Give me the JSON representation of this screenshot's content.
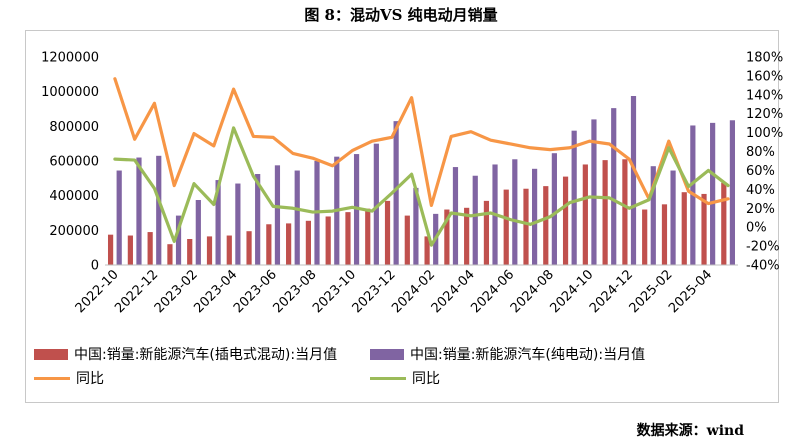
{
  "title": "图 8：混动VS 纯电动月销量",
  "source": "数据来源：wind",
  "legend": {
    "phev": "中国:销量:新能源汽车(插电式混动):当月值",
    "bev": "中国:销量:新能源汽车(纯电动):当月值",
    "phev_yoy": "同比",
    "bev_yoy": "同比"
  },
  "colors": {
    "phev": "#c0504d",
    "bev": "#8064a2",
    "phev_yoy": "#f79646",
    "bev_yoy": "#9bbb59"
  },
  "chart_data": {
    "type": "bar",
    "categories": [
      "2022-10",
      "2022-11",
      "2022-12",
      "2023-01",
      "2023-02",
      "2023-03",
      "2023-04",
      "2023-05",
      "2023-06",
      "2023-07",
      "2023-08",
      "2023-09",
      "2023-10",
      "2023-11",
      "2023-12",
      "2024-01",
      "2024-02",
      "2024-03",
      "2024-04",
      "2024-05",
      "2024-06",
      "2024-07",
      "2024-08",
      "2024-09",
      "2024-10",
      "2024-11",
      "2024-12",
      "2025-01",
      "2025-02",
      "2025-03",
      "2025-04",
      "2025-05"
    ],
    "x_tick_labels": [
      "2022-10",
      "2022-12",
      "2023-02",
      "2023-04",
      "2023-06",
      "2023-08",
      "2023-10",
      "2023-12",
      "2024-02",
      "2024-04",
      "2024-06",
      "2024-08",
      "2024-10",
      "2024-12",
      "2025-02",
      "2025-04"
    ],
    "y_left": {
      "min": 0,
      "max": 1200000,
      "step": 200000,
      "ticks": [
        "0",
        "200000",
        "400000",
        "600000",
        "800000",
        "1000000",
        "1200000"
      ]
    },
    "y_right": {
      "min": -40,
      "max": 180,
      "step": 20,
      "ticks": [
        "-40%",
        "-20%",
        "0%",
        "20%",
        "40%",
        "60%",
        "80%",
        "100%",
        "120%",
        "140%",
        "160%",
        "180%"
      ]
    },
    "grid": false,
    "legend_position": "bottom",
    "series": [
      {
        "name": "中国:销量:新能源汽车(插电式混动):当月值",
        "type": "bar",
        "axis": "left",
        "values": [
          175000,
          170000,
          190000,
          120000,
          150000,
          165000,
          170000,
          195000,
          235000,
          240000,
          255000,
          280000,
          305000,
          325000,
          370000,
          285000,
          165000,
          320000,
          330000,
          370000,
          435000,
          440000,
          455000,
          510000,
          580000,
          605000,
          610000,
          320000,
          350000,
          420000,
          410000,
          475000
        ]
      },
      {
        "name": "中国:销量:新能源汽车(纯电动):当月值",
        "type": "bar",
        "axis": "left",
        "values": [
          545000,
          620000,
          630000,
          285000,
          375000,
          490000,
          470000,
          525000,
          575000,
          545000,
          600000,
          625000,
          640000,
          700000,
          830000,
          445000,
          295000,
          565000,
          515000,
          580000,
          610000,
          555000,
          645000,
          775000,
          840000,
          905000,
          975000,
          570000,
          545000,
          805000,
          820000,
          835000
        ]
      },
      {
        "name": "同比",
        "type": "line",
        "axis": "right",
        "values": [
          157,
          93,
          131,
          44,
          99,
          86,
          146,
          96,
          95,
          78,
          73,
          65,
          81,
          91,
          95,
          137,
          23,
          96,
          101,
          92,
          88,
          84,
          82,
          84,
          91,
          88,
          72,
          30,
          91,
          38,
          25,
          30
        ]
      },
      {
        "name": "同比",
        "type": "line",
        "axis": "right",
        "values": [
          72,
          71,
          41,
          -15,
          46,
          24,
          105,
          54,
          22,
          20,
          16,
          17,
          21,
          17,
          36,
          56,
          -19,
          15,
          12,
          15,
          8,
          3,
          11,
          26,
          32,
          31,
          20,
          29,
          84,
          43,
          60,
          44
        ]
      }
    ]
  }
}
